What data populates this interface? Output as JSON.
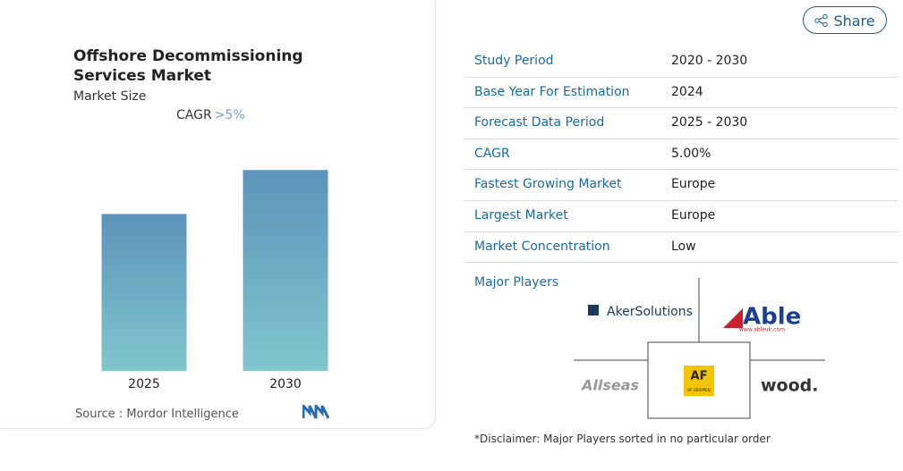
{
  "chart_data": {
    "type": "bar",
    "title": "Offshore Decommissioning Services Market",
    "subtitle": "Market Size",
    "cagr_label": "CAGR",
    "cagr_value": ">5%",
    "categories": [
      "2025",
      "2030"
    ],
    "values": [
      100,
      128
    ],
    "ylim": [
      0,
      131
    ],
    "color_top": "#5d93bb",
    "color_bottom": "#80c6cd",
    "source_label": "Source :",
    "source": "Mordor Intelligence"
  },
  "share": "Share",
  "table": {
    "rows": [
      [
        "Study Period",
        "2020 - 2030"
      ],
      [
        "Base Year For Estimation",
        "2024"
      ],
      [
        "Forecast Data Period",
        "2025 - 2030"
      ],
      [
        "CAGR",
        "5.00%"
      ],
      [
        "Fastest Growing Market",
        "Europe"
      ],
      [
        "Largest Market",
        "Europe"
      ],
      [
        "Market Concentration",
        "Low"
      ]
    ]
  },
  "major_players": {
    "title": "Major Players",
    "logos": {
      "aker": "AkerSolutions",
      "able": "Able",
      "able_url": "www.ableuk.com",
      "allseas": "Allseas",
      "af": "AF",
      "af_sub": "AF GRUPPEN",
      "wood": "wood."
    }
  },
  "disclaimer": "*Disclaimer: Major Players sorted in no particular order"
}
